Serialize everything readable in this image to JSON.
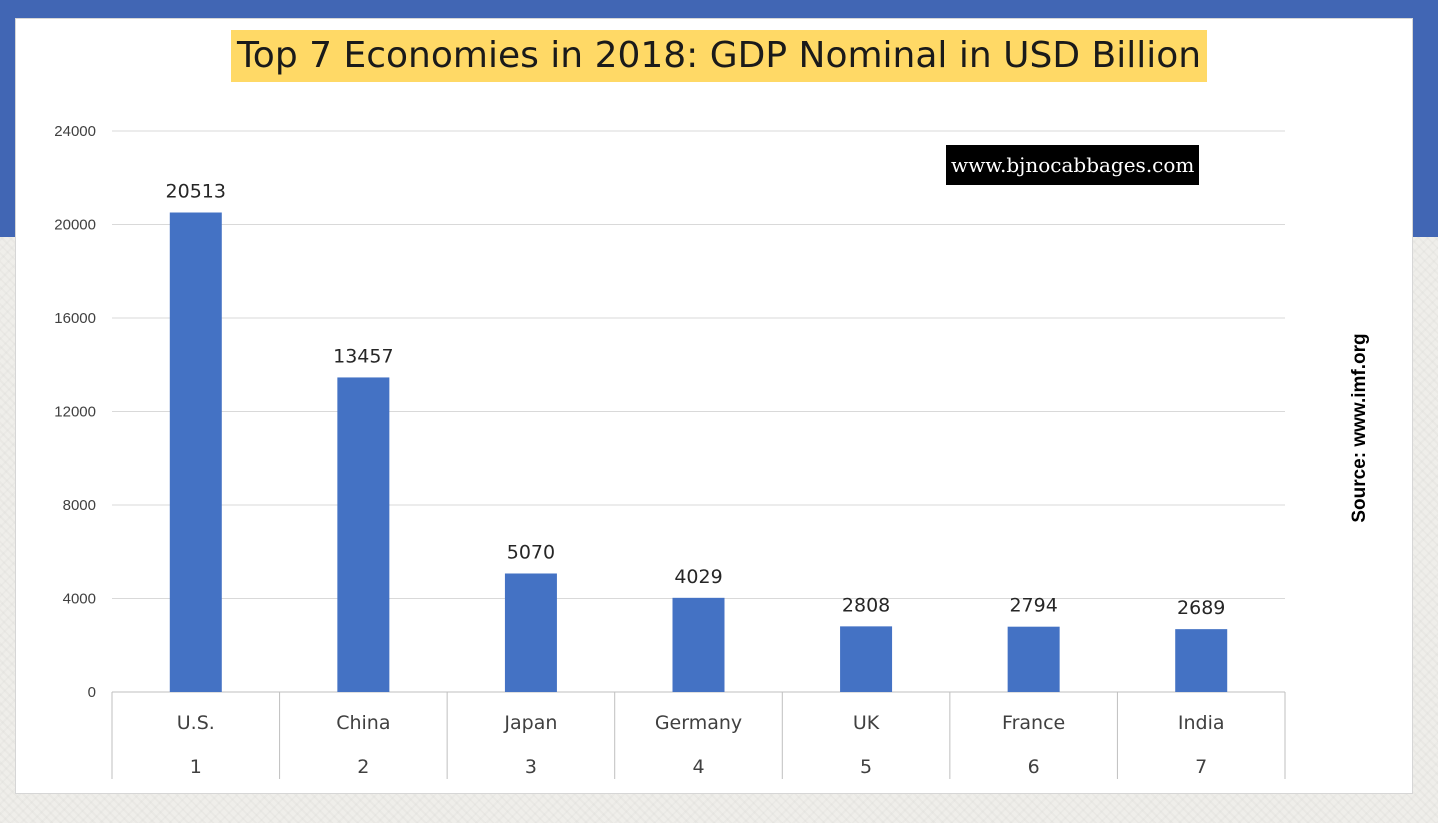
{
  "chart_data": {
    "type": "bar",
    "title": "Top 7 Economies in 2018: GDP Nominal in USD Billion",
    "categories": [
      "U.S.",
      "China",
      "Japan",
      "Germany",
      "UK",
      "France",
      "India"
    ],
    "ranks": [
      "1",
      "2",
      "3",
      "4",
      "5",
      "6",
      "7"
    ],
    "values": [
      20513,
      13457,
      5070,
      4029,
      2808,
      2794,
      2689
    ],
    "ylim": [
      0,
      24000
    ],
    "yticks": [
      0,
      4000,
      8000,
      12000,
      16000,
      20000,
      24000
    ],
    "grid": true,
    "data_labels": true,
    "bar_color": "#4472c4"
  },
  "watermark": "www.bjnocabbages.com",
  "source_note": "Source: www.imf.org",
  "colors": {
    "background_band": "#4166b4",
    "title_highlight": "#ffd966",
    "gridline": "#d9d9d9"
  }
}
